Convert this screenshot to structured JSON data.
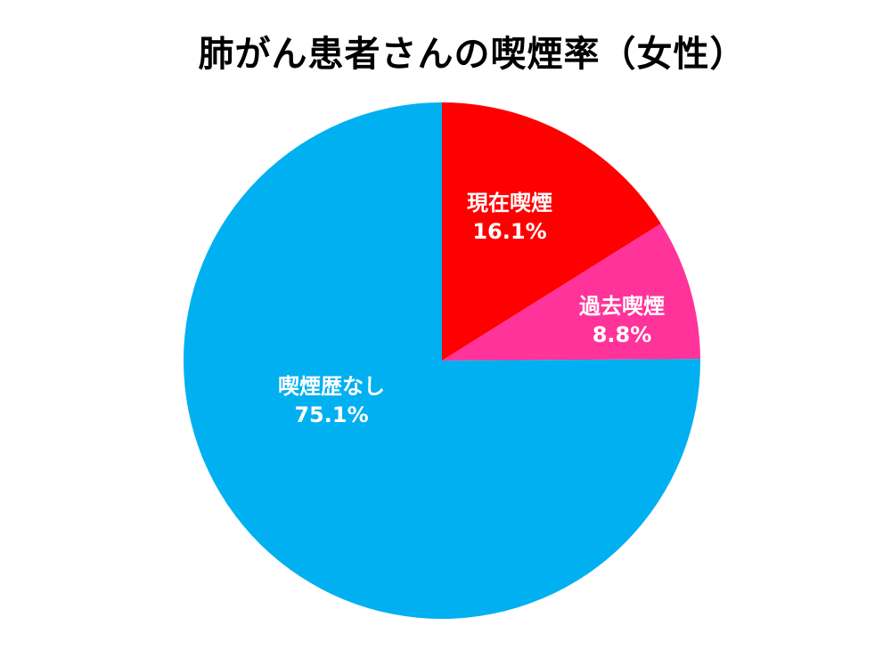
{
  "chart_data": {
    "type": "pie",
    "title": "肺がん患者さんの喫煙率（女性）",
    "slices": [
      {
        "label": "現在喫煙",
        "value": 16.1,
        "value_label": "16.1%",
        "color": "#ff0000"
      },
      {
        "label": "過去喫煙",
        "value": 8.8,
        "value_label": "8.8%",
        "color": "#ff3399"
      },
      {
        "label": "喫煙歴なし",
        "value": 75.1,
        "value_label": "75.1%",
        "color": "#00b0f0"
      }
    ],
    "start": "12 o'clock",
    "direction": "clockwise",
    "legend": "none"
  }
}
